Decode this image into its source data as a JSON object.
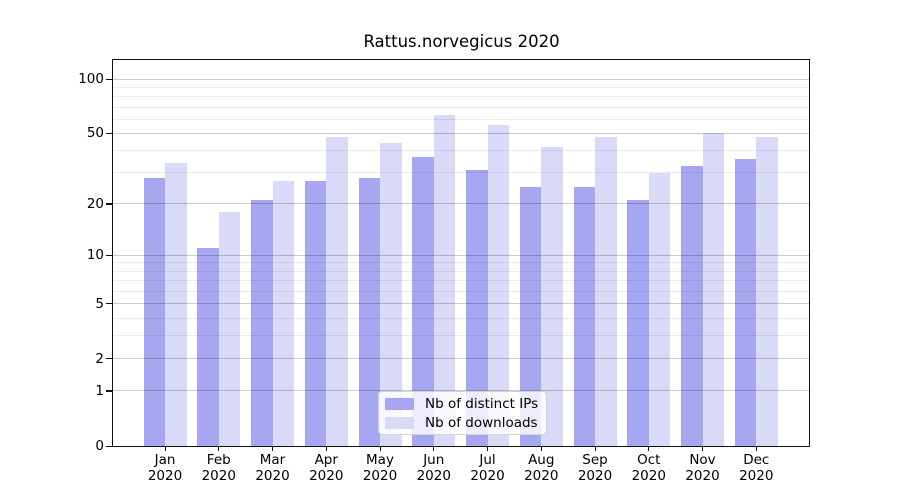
{
  "chart_data": {
    "type": "bar",
    "title": "Rattus.norvegicus 2020",
    "categories": [
      "Jan 2020",
      "Feb 2020",
      "Mar 2020",
      "Apr 2020",
      "May 2020",
      "Jun 2020",
      "Jul 2020",
      "Aug 2020",
      "Sep 2020",
      "Oct 2020",
      "Nov 2020",
      "Dec 2020"
    ],
    "months": [
      "Jan",
      "Feb",
      "Mar",
      "Apr",
      "May",
      "Jun",
      "Jul",
      "Aug",
      "Sep",
      "Oct",
      "Nov",
      "Dec"
    ],
    "year_line": "2020",
    "series": [
      {
        "name": "Nb of distinct IPs",
        "color": "#a7a7f1",
        "values": [
          28,
          11,
          21,
          27,
          28,
          37,
          31,
          25,
          25,
          21,
          33,
          36
        ]
      },
      {
        "name": "Nb of downloads",
        "color": "#d9d9f8",
        "values": [
          34,
          18,
          27,
          48,
          44,
          63,
          56,
          42,
          48,
          30,
          50,
          48
        ]
      }
    ],
    "xlabel": "",
    "ylabel": "",
    "yscale": "log1p",
    "ylim": [
      0,
      127
    ],
    "y_ticks": [
      0,
      1,
      2,
      5,
      10,
      20,
      50,
      100
    ],
    "y_minor_ticks": [
      3,
      4,
      6,
      7,
      8,
      9,
      30,
      40,
      60,
      70,
      80,
      90
    ],
    "grid": true,
    "legend": {
      "position": "lower center",
      "labels": [
        "Nb of distinct IPs",
        "Nb of downloads"
      ]
    }
  }
}
